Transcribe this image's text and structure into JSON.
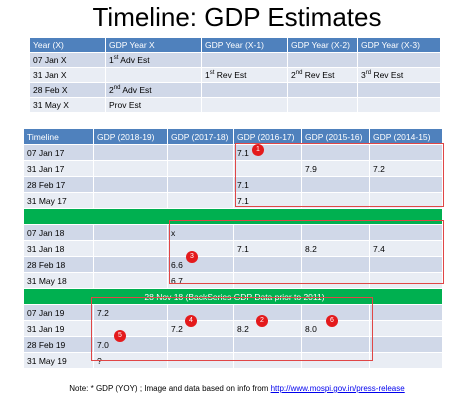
{
  "title": "Timeline: GDP Estimates",
  "table1": {
    "headers": [
      "Year (X)",
      "GDP Year X",
      "GDP Year (X-1)",
      "GDP Year (X-2)",
      "GDP Year (X-3)"
    ],
    "rows": [
      {
        "date": "07 Jan X",
        "c1": {
          "n": "1",
          "sup": "st",
          "t": " Adv Est"
        },
        "c2": "",
        "c3": "",
        "c4": ""
      },
      {
        "date": "31 Jan X",
        "c1": null,
        "c2": {
          "n": "1",
          "sup": "st",
          "t": " Rev Est"
        },
        "c3": {
          "n": "2",
          "sup": "nd",
          "t": " Rev Est"
        },
        "c4": {
          "n": "3",
          "sup": "rd",
          "t": " Rev Est"
        }
      },
      {
        "date": "28 Feb X",
        "c1": {
          "n": "2",
          "sup": "nd",
          "t": " Adv Est"
        },
        "c2": "",
        "c3": "",
        "c4": ""
      },
      {
        "date": "31 May X",
        "c1": "Prov Est",
        "c2": "",
        "c3": "",
        "c4": ""
      }
    ]
  },
  "table2": {
    "headers": [
      "Timeline",
      "GDP (2018-19)",
      "GDP (2017-18)",
      "GDP (2016-17)",
      "GDP (2015-16)",
      "GDP (2014-15)"
    ],
    "rows": [
      [
        "07 Jan 17",
        "",
        "",
        "7.1",
        "",
        ""
      ],
      [
        "31 Jan 17",
        "",
        "",
        "",
        "7.9",
        "7.2"
      ],
      [
        "28 Feb 17",
        "",
        "",
        "7.1",
        "",
        ""
      ],
      [
        "31 May 17",
        "",
        "",
        "7.1",
        "",
        ""
      ],
      [
        "07 Jan 18",
        "",
        "x",
        "",
        "",
        ""
      ],
      [
        "31 Jan 18",
        "",
        "",
        "7.1",
        "8.2",
        "7.4"
      ],
      [
        "28 Feb 18",
        "",
        "6.6",
        "",
        "",
        ""
      ],
      [
        "31 May 18",
        "",
        "6.7",
        "",
        "",
        ""
      ],
      [
        "07 Jan 19",
        "7.2",
        "",
        "",
        "",
        ""
      ],
      [
        "31 Jan 19",
        "",
        "7.2",
        "8.2",
        "8.0",
        ""
      ],
      [
        "28 Feb 19",
        "7.0",
        "",
        "",
        "",
        ""
      ],
      [
        "31 May 19",
        "?",
        "",
        "",
        "",
        ""
      ]
    ],
    "separator_label": "28 Nov 18 (BackSeries GDP Data prior to 2011)"
  },
  "badges": [
    "1",
    "2",
    "3",
    "4",
    "5",
    "6"
  ],
  "note": {
    "prefix": "Note: * GDP (YOY) ;  Image and data based on info from ",
    "link": "http://www.mospi.gov.in/press-release"
  },
  "colors": {
    "header": "#4f81bd",
    "row_dark": "#d0d8e8",
    "row_light": "#e9edf4",
    "separator": "#00b050",
    "highlight": "#e04646",
    "badge": "#e41a1c"
  }
}
